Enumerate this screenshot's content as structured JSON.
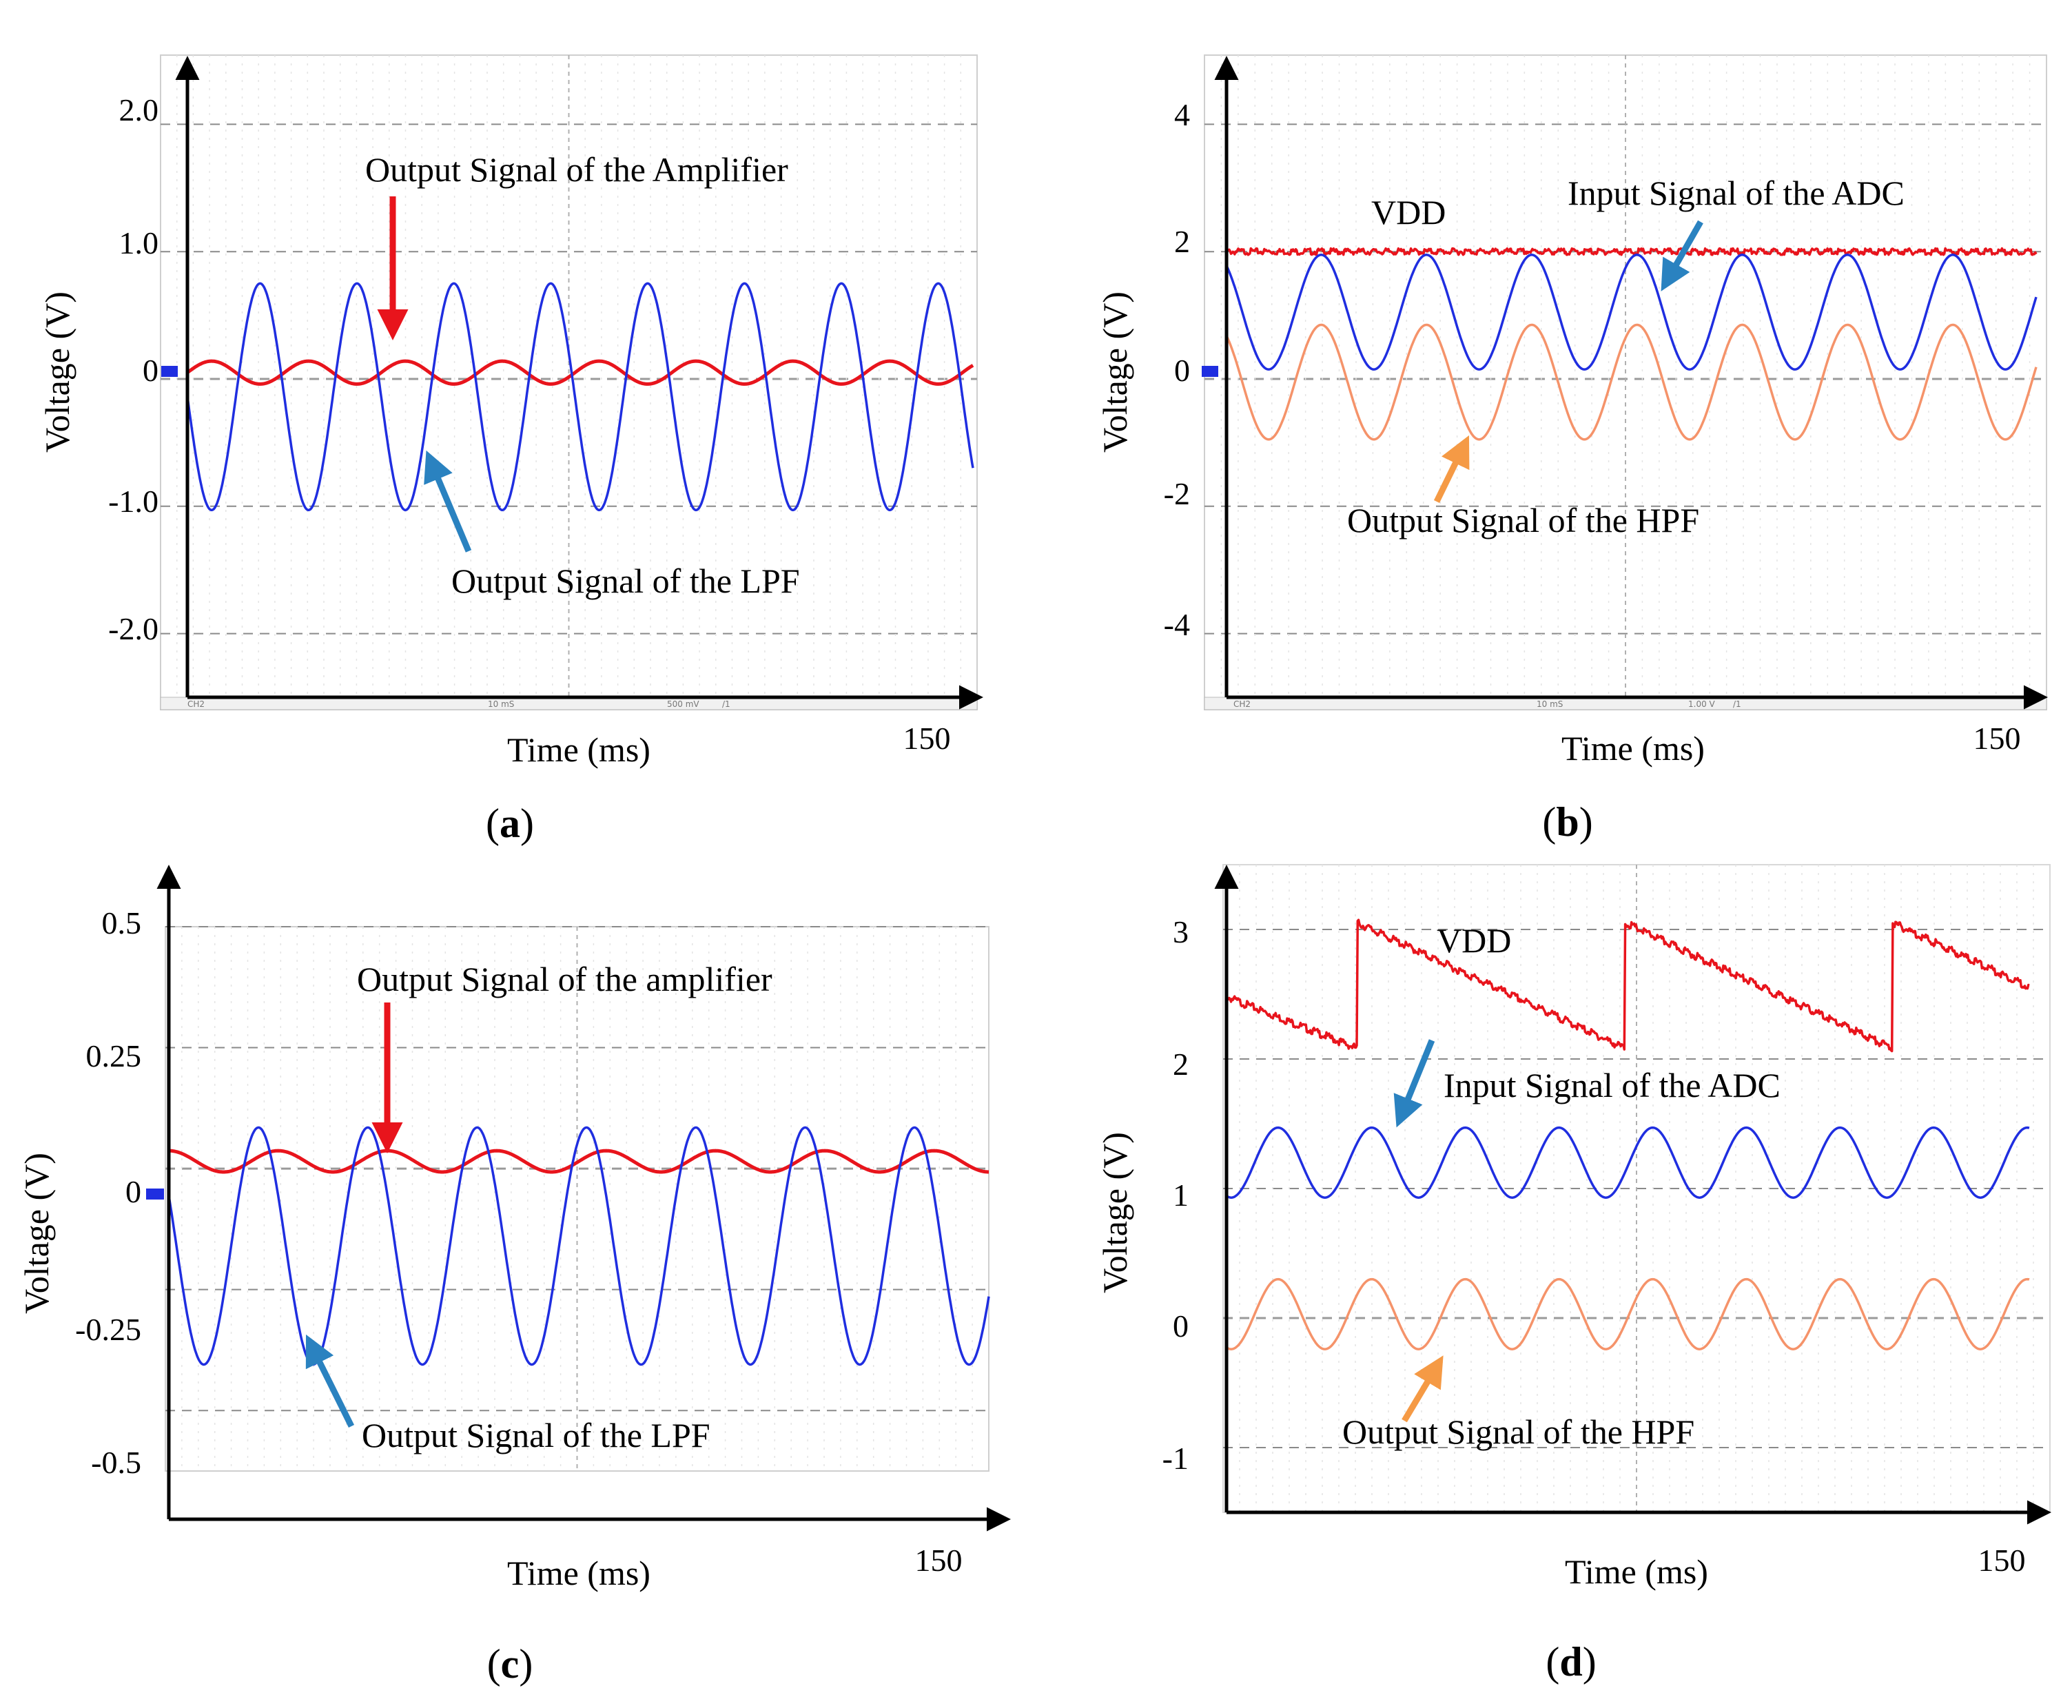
{
  "chart_data": [
    {
      "type": "line",
      "caption": "a",
      "xlabel": "Time (ms)",
      "ylabel": "Voltage (V)",
      "xlim": [
        0,
        150
      ],
      "xmax_label": "150",
      "ylim": [
        -2.5,
        2.5
      ],
      "yticks": [
        2.0,
        1.0,
        0,
        -1.0,
        -2.0
      ],
      "ytick_labels": [
        "2.0",
        "1.0",
        "0",
        "-1.0",
        "-2.0"
      ],
      "scope_bar": [
        "CH2",
        "10 mS",
        "500 mV",
        "/1"
      ],
      "series": [
        {
          "name": "Output Signal of the Amplifier",
          "color": "#e8141c",
          "offset": 0.05,
          "amplitude": 0.09,
          "period": 18.5,
          "phase": 0.25
        },
        {
          "name": "Output Signal of the LPF",
          "color": "#1f2ee0",
          "offset": -0.14,
          "amplitude": 0.89,
          "period": 18.5,
          "phase": 0.75
        }
      ],
      "annotations": [
        {
          "text": "Output Signal of the Amplifier",
          "color": "#e8141c"
        },
        {
          "text": "Output Signal of the LPF",
          "color": "#2a82c0"
        }
      ]
    },
    {
      "type": "line",
      "caption": "b",
      "xlabel": "Time (ms)",
      "ylabel": "Voltage (V)",
      "xlim": [
        0,
        150
      ],
      "xmax_label": "150",
      "ylim": [
        -5,
        5
      ],
      "yticks": [
        4,
        2,
        0,
        -2,
        -4
      ],
      "ytick_labels": [
        "4",
        "2",
        "0",
        "-2",
        "-4"
      ],
      "scope_bar": [
        "CH2",
        "10 mS",
        "1.00 V",
        "/1"
      ],
      "series": [
        {
          "name": "VDD",
          "color": "#e8141c",
          "offset": 2.0,
          "amplitude": 0.0,
          "period": 19.5,
          "phase": 0
        },
        {
          "name": "Input Signal of the ADC",
          "color": "#1f2ee0",
          "offset": 1.05,
          "amplitude": 0.9,
          "period": 19.5,
          "phase": 0.9
        },
        {
          "name": "Output Signal of the HPF",
          "color": "#f5936a",
          "offset": -0.05,
          "amplitude": 0.9,
          "period": 19.5,
          "phase": 0.9
        }
      ],
      "annotations": [
        {
          "text": "VDD",
          "color": "#e8141c"
        },
        {
          "text": "Input Signal of the ADC",
          "color": "#2a82c0"
        },
        {
          "text": "Output Signal of the HPF",
          "color": "#f59a45"
        }
      ]
    },
    {
      "type": "line",
      "caption": "c",
      "xlabel": "Time (ms)",
      "ylabel": "Voltage (V)",
      "xlim": [
        0,
        150
      ],
      "xmax_label": "150",
      "ylim": [
        -0.625,
        0.5
      ],
      "yticks": [
        0.5,
        0.25,
        0,
        -0.25,
        -0.5
      ],
      "ytick_labels": [
        "0.5",
        "0.25",
        "0",
        "-0.25",
        "-0.5"
      ],
      "series": [
        {
          "name": "Output Signal of the amplifier",
          "color": "#e8141c",
          "offset": 0.015,
          "amplitude": 0.022,
          "period": 20,
          "phase": 0.0
        },
        {
          "name": "Output Signal of the LPF",
          "color": "#1f2ee0",
          "offset": -0.16,
          "amplitude": 0.245,
          "period": 20,
          "phase": 0.82
        }
      ],
      "annotations": [
        {
          "text": "Output Signal of the amplifier",
          "color": "#e8141c"
        },
        {
          "text": "Output Signal of the LPF",
          "color": "#2a82c0"
        }
      ]
    },
    {
      "type": "line",
      "caption": "d",
      "xlabel": "Time (ms)",
      "ylabel": "Voltage (V)",
      "xlim": [
        0,
        150
      ],
      "xmax_label": "150",
      "ylim": [
        -1.5,
        3.5
      ],
      "yticks": [
        3,
        2,
        1,
        0,
        -1
      ],
      "ytick_labels": [
        "3",
        "2",
        "1",
        "0",
        "-1"
      ],
      "series": [
        {
          "name": "VDD",
          "color": "#e8141c",
          "shape": "sawtooth",
          "start": 2.48,
          "low": 2.08,
          "high": 3.05,
          "period": 50,
          "first_reset": 24.5
        },
        {
          "name": "Input Signal of the ADC",
          "color": "#1f2ee0",
          "offset": 1.2,
          "amplitude": 0.27,
          "period": 17.5,
          "phase": 0.55
        },
        {
          "name": "Output Signal of the HPF",
          "color": "#f5936a",
          "offset": 0.03,
          "amplitude": 0.27,
          "period": 17.5,
          "phase": 0.55
        }
      ],
      "annotations": [
        {
          "text": "VDD",
          "color": "#e8141c"
        },
        {
          "text": "Input Signal of the ADC",
          "color": "#2a82c0"
        },
        {
          "text": "Output Signal of the HPF",
          "color": "#f59a45"
        }
      ]
    }
  ]
}
